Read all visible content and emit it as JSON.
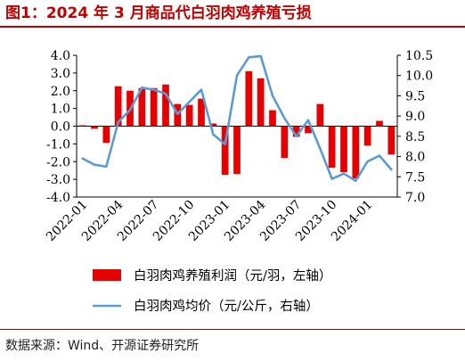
{
  "title": "图1：2024 年 3 月商品代白羽肉鸡养殖亏损",
  "source": "数据来源：Wind、开源证券研究所",
  "colors": {
    "bar": "#e60000",
    "line": "#5b9bd5",
    "title": "#c00000"
  },
  "chart_data": {
    "type": "bar+line",
    "title": "",
    "x": [
      "2022-01",
      "2022-02",
      "2022-03",
      "2022-04",
      "2022-05",
      "2022-06",
      "2022-07",
      "2022-08",
      "2022-09",
      "2022-10",
      "2022-11",
      "2022-12",
      "2023-01",
      "2023-02",
      "2023-03",
      "2023-04",
      "2023-05",
      "2023-06",
      "2023-07",
      "2023-08",
      "2023-09",
      "2023-10",
      "2023-11",
      "2023-12",
      "2024-01",
      "2024-02",
      "2024-03"
    ],
    "x_tick_labels": [
      "2022-01",
      "2022-04",
      "2022-07",
      "2022-10",
      "2023-01",
      "2023-04",
      "2023-07",
      "2023-10",
      "2024-01"
    ],
    "series": [
      {
        "name": "白羽肉鸡养殖利润（元/羽，左轴）",
        "type": "bar",
        "axis": "left",
        "values": [
          0.05,
          -0.15,
          -0.95,
          2.25,
          2.0,
          2.15,
          2.15,
          2.35,
          1.25,
          1.2,
          1.55,
          0.15,
          -2.75,
          -2.7,
          3.1,
          2.7,
          0.9,
          -1.8,
          -0.6,
          -0.4,
          1.25,
          -2.35,
          -2.6,
          -2.95,
          -1.1,
          0.3,
          -1.6
        ]
      },
      {
        "name": "白羽肉鸡均价（元/公斤，右轴）",
        "type": "line",
        "axis": "right",
        "values": [
          7.95,
          7.8,
          7.75,
          8.85,
          9.15,
          9.7,
          9.65,
          9.55,
          9.05,
          9.35,
          9.65,
          8.55,
          8.3,
          10.0,
          10.45,
          10.48,
          9.5,
          8.95,
          8.5,
          8.9,
          8.2,
          7.45,
          7.58,
          7.4,
          7.88,
          8.02,
          7.68
        ]
      }
    ],
    "y_left": {
      "ylim": [
        -4.0,
        4.0
      ],
      "ticks": [
        "-4.0",
        "-3.0",
        "-2.0",
        "-1.0",
        "0.0",
        "1.0",
        "2.0",
        "3.0",
        "4.0"
      ]
    },
    "y_right": {
      "ylim": [
        7.0,
        10.5
      ],
      "ticks": [
        "7.0",
        "7.5",
        "8.0",
        "8.5",
        "9.0",
        "9.5",
        "10.0",
        "10.5"
      ]
    },
    "legend": {
      "placement": "bottom",
      "items": [
        {
          "label": "白羽肉鸡养殖利润（元/羽，左轴）",
          "type": "bar"
        },
        {
          "label": "白羽肉鸡均价（元/公斤，右轴）",
          "type": "line"
        }
      ]
    },
    "grid": false
  }
}
